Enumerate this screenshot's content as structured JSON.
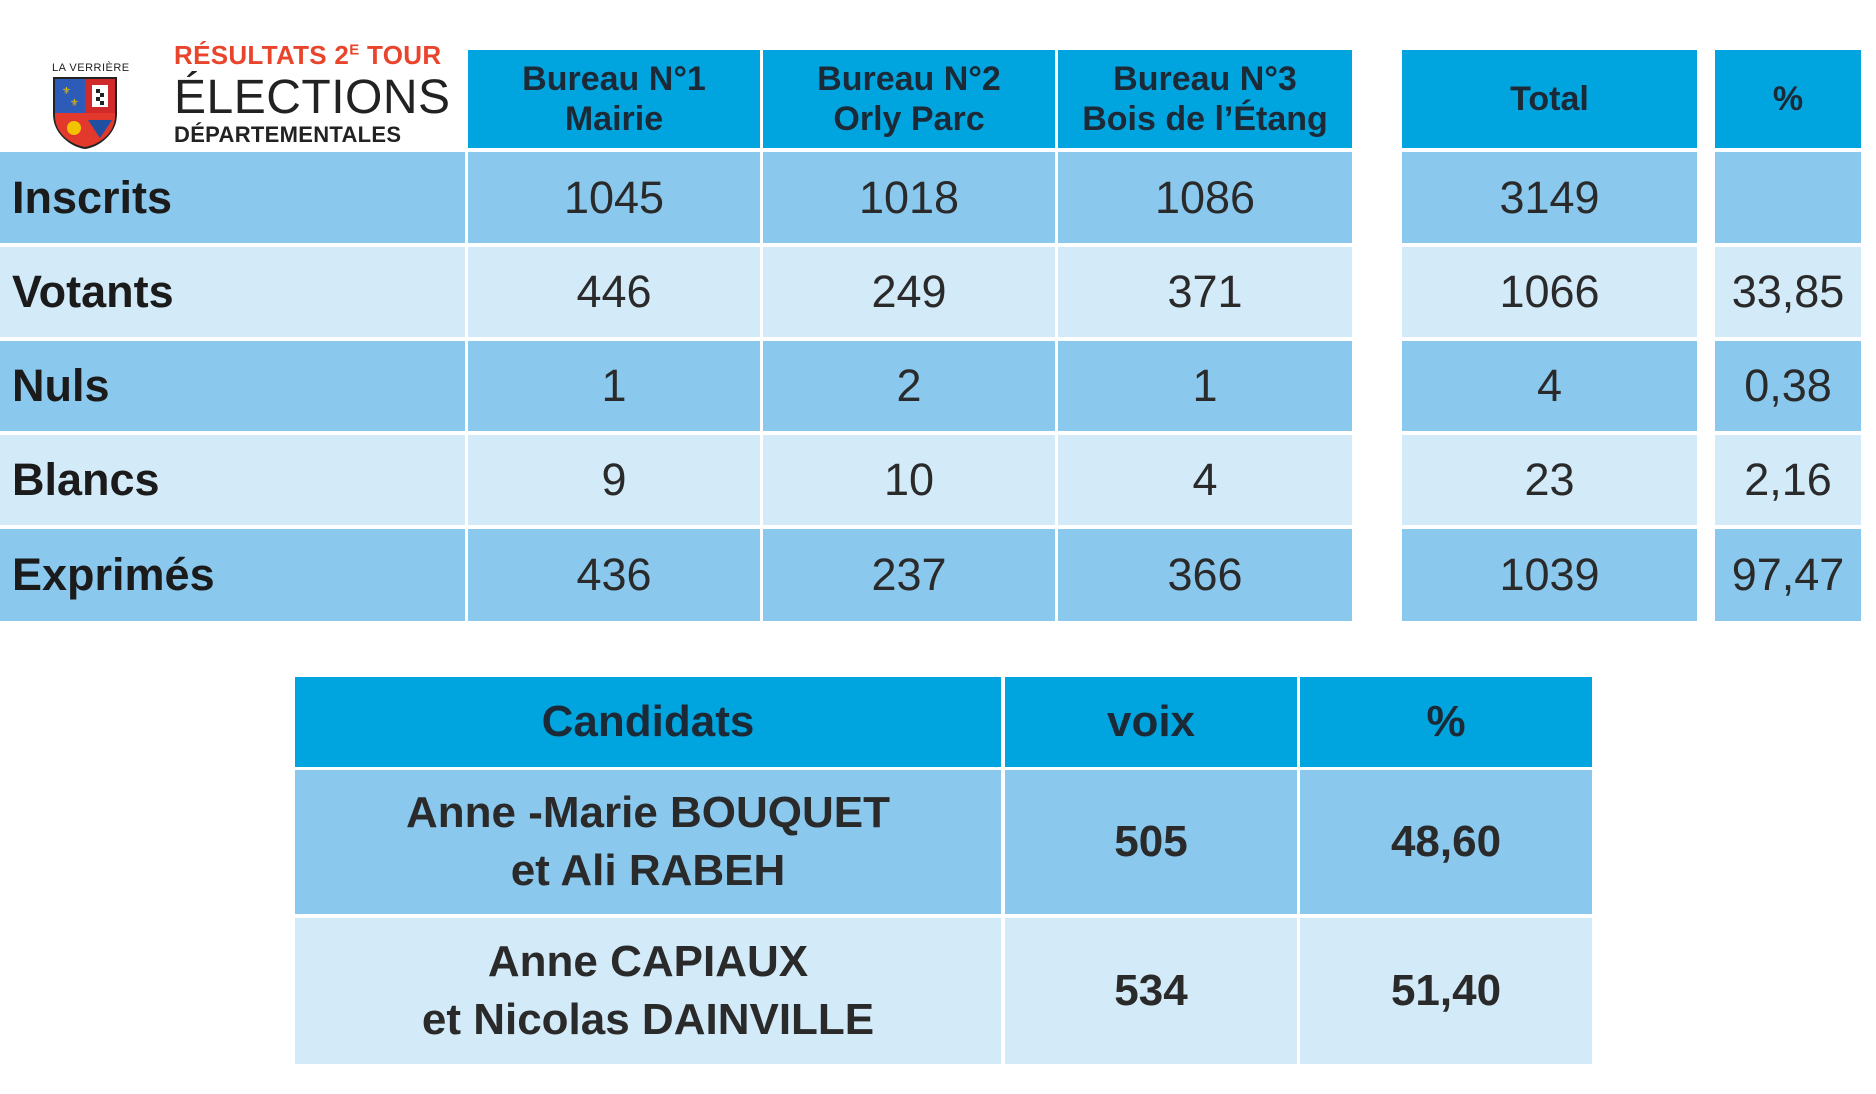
{
  "header": {
    "town": "LA VERRIÈRE",
    "round_line_prefix": "RÉSULTATS 2",
    "round_line_sup": "E",
    "round_line_suffix": " TOUR",
    "title": "ÉLECTIONS",
    "subtitle": "DÉPARTEMENTALES"
  },
  "colors": {
    "header_blue": "#00a5df",
    "row_dark": "#8ac8ee",
    "row_light": "#d3eaf9",
    "accent_red": "#e8452c"
  },
  "results_table": {
    "bureaus": [
      {
        "line1": "Bureau N°1",
        "line2": "Mairie"
      },
      {
        "line1": "Bureau N°2",
        "line2": "Orly Parc"
      },
      {
        "line1": "Bureau N°3",
        "line2": "Bois de l’Étang"
      }
    ],
    "total_header": "Total",
    "pct_header": "%",
    "rows": [
      {
        "label": "Inscrits",
        "b1": "1045",
        "b2": "1018",
        "b3": "1086",
        "total": "3149",
        "pct": ""
      },
      {
        "label": "Votants",
        "b1": "446",
        "b2": "249",
        "b3": "371",
        "total": "1066",
        "pct": "33,85"
      },
      {
        "label": "Nuls",
        "b1": "1",
        "b2": "2",
        "b3": "1",
        "total": "4",
        "pct": "0,38"
      },
      {
        "label": "Blancs",
        "b1": "9",
        "b2": "10",
        "b3": "4",
        "total": "23",
        "pct": "2,16"
      },
      {
        "label": "Exprimés",
        "b1": "436",
        "b2": "237",
        "b3": "366",
        "total": "1039",
        "pct": "97,47"
      }
    ]
  },
  "candidates_table": {
    "headers": {
      "candidats": "Candidats",
      "voix": "voix",
      "pct": "%"
    },
    "rows": [
      {
        "line1": "Anne -Marie BOUQUET",
        "line2": "et Ali RABEH",
        "voix": "505",
        "pct": "48,60"
      },
      {
        "line1": "Anne CAPIAUX",
        "line2": "et Nicolas DAINVILLE",
        "voix": "534",
        "pct": "51,40"
      }
    ]
  }
}
